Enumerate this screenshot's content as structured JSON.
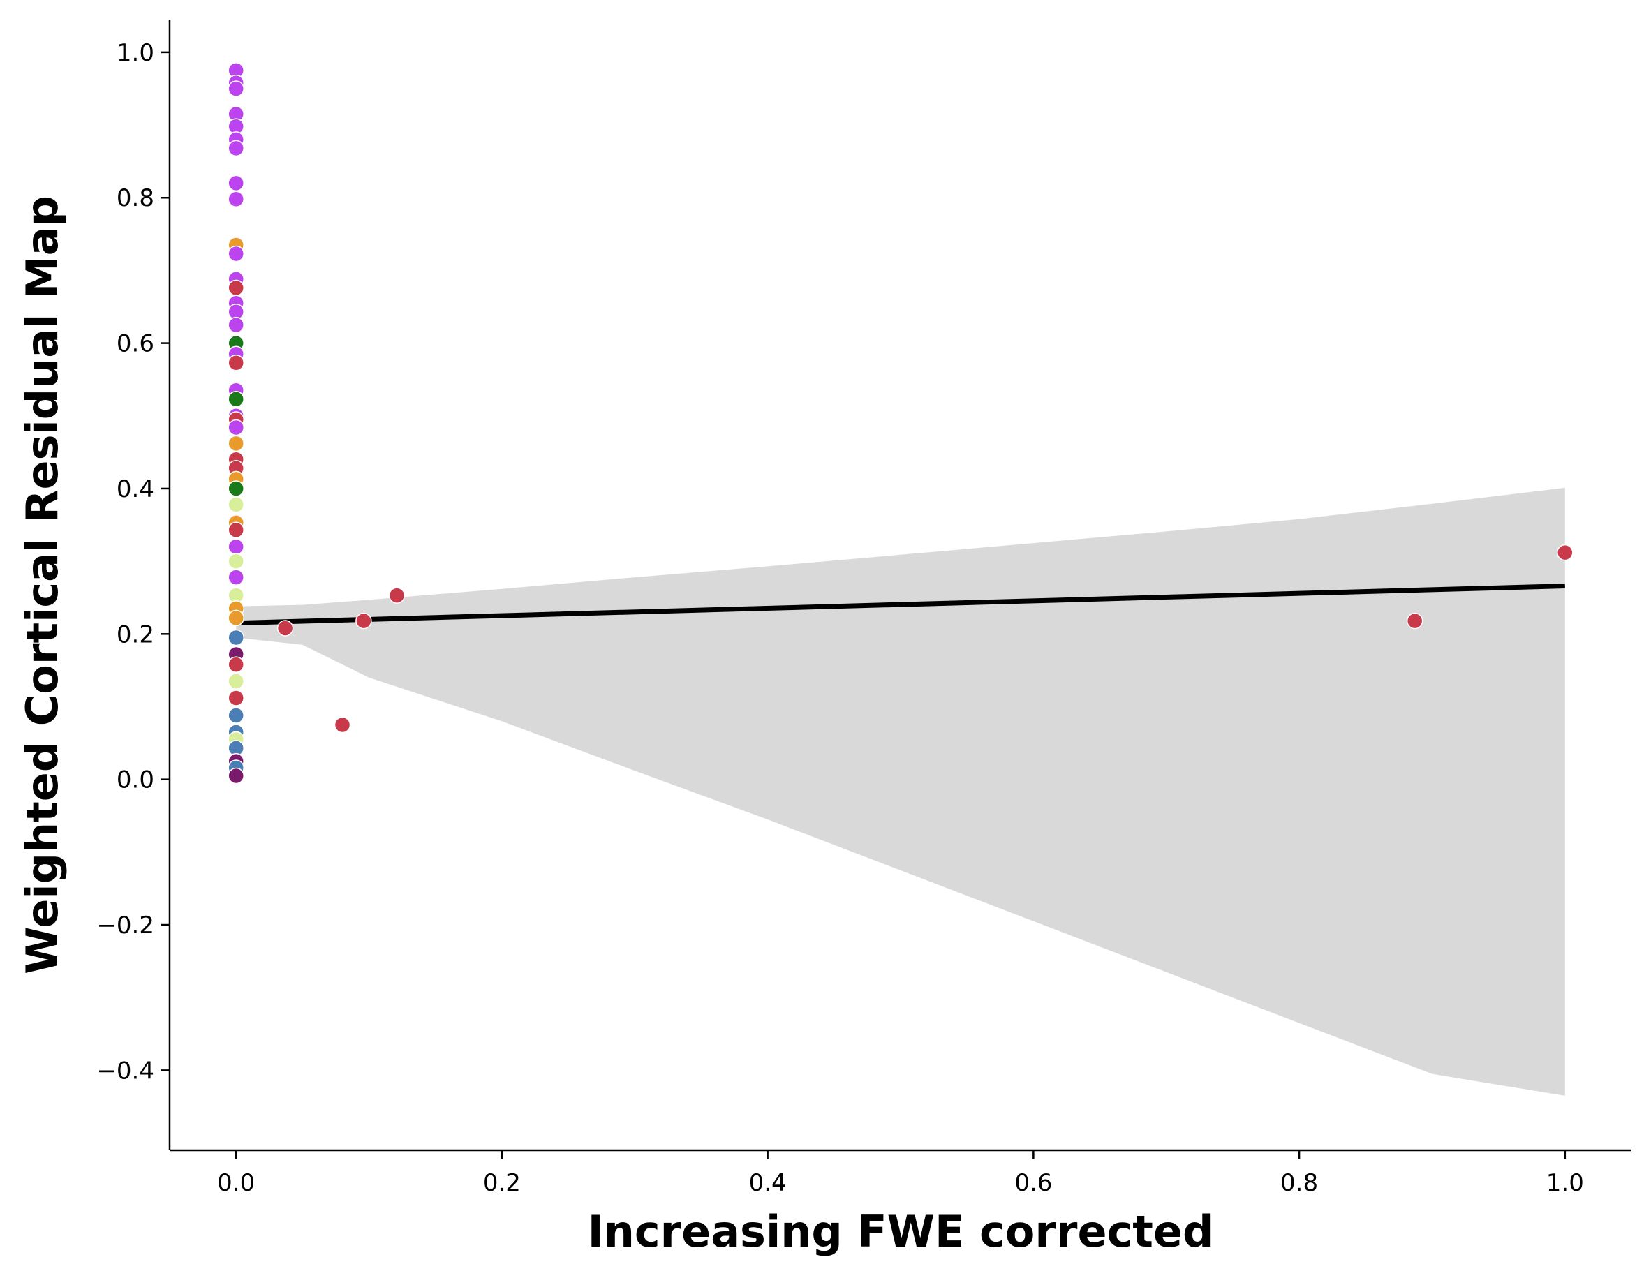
{
  "chart_data": {
    "type": "scatter",
    "title": "",
    "xlabel": "Increasing FWE corrected",
    "ylabel": "Weighted Cortical Residual Map",
    "xlim": [
      -0.05,
      1.05
    ],
    "ylim": [
      -0.51,
      1.045
    ],
    "xticks": [
      0.0,
      0.2,
      0.4,
      0.6,
      0.8,
      1.0
    ],
    "yticks": [
      -0.4,
      -0.2,
      0.0,
      0.2,
      0.4,
      0.6,
      0.8,
      1.0
    ],
    "xtick_labels": [
      "0.0",
      "0.2",
      "0.4",
      "0.6",
      "0.8",
      "1.0"
    ],
    "ytick_labels": [
      "−0.4",
      "−0.2",
      "0.0",
      "0.2",
      "0.4",
      "0.6",
      "0.8",
      "1.0"
    ],
    "grid": false,
    "legend": "none",
    "colors": {
      "red": "#c83a4a",
      "purple": "#bb44ee",
      "green": "#1a7a1a",
      "orange": "#e89a2c",
      "yellow_green": "#d8ee9a",
      "steel_blue": "#4a7eb4",
      "dark_purple": "#7a1a6a",
      "line": "#000000",
      "band": "#d9d9d9"
    },
    "points": [
      {
        "x": 0.0,
        "y": 0.975,
        "c": "purple"
      },
      {
        "x": 0.0,
        "y": 0.958,
        "c": "purple"
      },
      {
        "x": 0.0,
        "y": 0.95,
        "c": "purple"
      },
      {
        "x": 0.0,
        "y": 0.915,
        "c": "purple"
      },
      {
        "x": 0.0,
        "y": 0.898,
        "c": "purple"
      },
      {
        "x": 0.0,
        "y": 0.88,
        "c": "purple"
      },
      {
        "x": 0.0,
        "y": 0.868,
        "c": "purple"
      },
      {
        "x": 0.0,
        "y": 0.82,
        "c": "purple"
      },
      {
        "x": 0.0,
        "y": 0.798,
        "c": "purple"
      },
      {
        "x": 0.0,
        "y": 0.735,
        "c": "orange"
      },
      {
        "x": 0.0,
        "y": 0.723,
        "c": "purple"
      },
      {
        "x": 0.0,
        "y": 0.688,
        "c": "purple"
      },
      {
        "x": 0.0,
        "y": 0.676,
        "c": "red"
      },
      {
        "x": 0.0,
        "y": 0.655,
        "c": "purple"
      },
      {
        "x": 0.0,
        "y": 0.643,
        "c": "purple"
      },
      {
        "x": 0.0,
        "y": 0.625,
        "c": "purple"
      },
      {
        "x": 0.0,
        "y": 0.6,
        "c": "green"
      },
      {
        "x": 0.0,
        "y": 0.585,
        "c": "purple"
      },
      {
        "x": 0.0,
        "y": 0.573,
        "c": "red"
      },
      {
        "x": 0.0,
        "y": 0.535,
        "c": "purple"
      },
      {
        "x": 0.0,
        "y": 0.523,
        "c": "green"
      },
      {
        "x": 0.0,
        "y": 0.5,
        "c": "purple"
      },
      {
        "x": 0.0,
        "y": 0.495,
        "c": "red"
      },
      {
        "x": 0.0,
        "y": 0.484,
        "c": "purple"
      },
      {
        "x": 0.0,
        "y": 0.462,
        "c": "orange"
      },
      {
        "x": 0.0,
        "y": 0.44,
        "c": "red"
      },
      {
        "x": 0.0,
        "y": 0.428,
        "c": "red"
      },
      {
        "x": 0.0,
        "y": 0.413,
        "c": "orange"
      },
      {
        "x": 0.0,
        "y": 0.4,
        "c": "green"
      },
      {
        "x": 0.0,
        "y": 0.378,
        "c": "yellow_green"
      },
      {
        "x": 0.0,
        "y": 0.353,
        "c": "orange"
      },
      {
        "x": 0.0,
        "y": 0.343,
        "c": "red"
      },
      {
        "x": 0.0,
        "y": 0.32,
        "c": "purple"
      },
      {
        "x": 0.0,
        "y": 0.3,
        "c": "yellow_green"
      },
      {
        "x": 0.0,
        "y": 0.278,
        "c": "purple"
      },
      {
        "x": 0.0,
        "y": 0.253,
        "c": "yellow_green"
      },
      {
        "x": 0.0,
        "y": 0.235,
        "c": "orange"
      },
      {
        "x": 0.0,
        "y": 0.222,
        "c": "orange"
      },
      {
        "x": 0.0,
        "y": 0.195,
        "c": "steel_blue"
      },
      {
        "x": 0.0,
        "y": 0.172,
        "c": "dark_purple"
      },
      {
        "x": 0.0,
        "y": 0.158,
        "c": "red"
      },
      {
        "x": 0.0,
        "y": 0.135,
        "c": "yellow_green"
      },
      {
        "x": 0.0,
        "y": 0.112,
        "c": "red"
      },
      {
        "x": 0.0,
        "y": 0.088,
        "c": "steel_blue"
      },
      {
        "x": 0.0,
        "y": 0.065,
        "c": "steel_blue"
      },
      {
        "x": 0.0,
        "y": 0.055,
        "c": "yellow_green"
      },
      {
        "x": 0.0,
        "y": 0.043,
        "c": "steel_blue"
      },
      {
        "x": 0.0,
        "y": 0.025,
        "c": "dark_purple"
      },
      {
        "x": 0.0,
        "y": 0.016,
        "c": "steel_blue"
      },
      {
        "x": 0.0,
        "y": 0.005,
        "c": "dark_purple"
      },
      {
        "x": 0.037,
        "y": 0.208,
        "c": "red"
      },
      {
        "x": 0.08,
        "y": 0.075,
        "c": "red"
      },
      {
        "x": 0.096,
        "y": 0.218,
        "c": "red"
      },
      {
        "x": 0.121,
        "y": 0.253,
        "c": "red"
      },
      {
        "x": 0.887,
        "y": 0.218,
        "c": "red"
      },
      {
        "x": 1.0,
        "y": 0.312,
        "c": "red"
      }
    ],
    "regression": {
      "x": [
        0.0,
        1.0
      ],
      "y": [
        0.215,
        0.266
      ]
    },
    "confidence_band": {
      "x": [
        0.0,
        0.05,
        0.1,
        0.2,
        0.3,
        0.4,
        0.5,
        0.6,
        0.7,
        0.8,
        0.9,
        1.0
      ],
      "upper": [
        0.238,
        0.24,
        0.247,
        0.262,
        0.278,
        0.293,
        0.309,
        0.325,
        0.341,
        0.358,
        0.379,
        0.401
      ],
      "lower": [
        0.195,
        0.185,
        0.14,
        0.08,
        0.012,
        -0.055,
        -0.125,
        -0.195,
        -0.265,
        -0.335,
        -0.405,
        -0.435
      ]
    }
  }
}
